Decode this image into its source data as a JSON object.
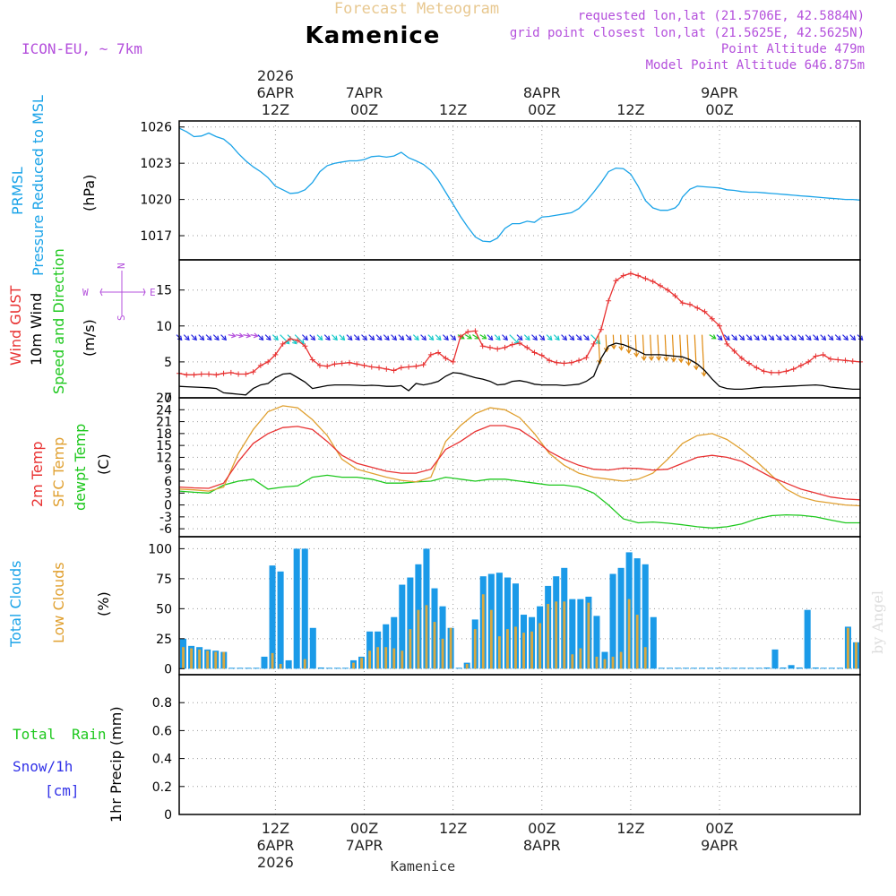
{
  "header": {
    "title_top": "Forecast Meteogram",
    "location": "Kamenice",
    "model": "ICON-EU, ~ 7km",
    "requested": "requested lon,lat (21.5706E, 42.5884N)",
    "gridpoint": "grid point closest lon,lat (21.5625E, 42.5625N)",
    "point_alt": "Point Altitude 479m",
    "model_alt": "Model Point Altitude 646.875m",
    "footer_location": "Kamenice",
    "watermark": "by Angel"
  },
  "colors": {
    "pressure": "#1aa3e8",
    "gust": "#e83232",
    "wind": "#000000",
    "temp2m": "#e83232",
    "sfc": "#e0a030",
    "dew": "#1ec81e",
    "total_cloud": "#1a9ae8",
    "low_cloud": "#d8a840",
    "rain": "#1ec81e",
    "snow": "#3232e8",
    "purple": "#b450dc",
    "arrow_n": "#2020e0",
    "arrow_c": "#10c8c8",
    "arrow_o": "#e08a10"
  },
  "panel_labels": {
    "pressure": [
      "PRMSL",
      "Pressure Reduced to MSL",
      "(hPa)"
    ],
    "wind": [
      "Wind GUST",
      "10m Wind",
      "Speed and Direction",
      "(m/s)"
    ],
    "compass": {
      "n": "N",
      "s": "S",
      "w": "W",
      "e": "E"
    },
    "temp": [
      "2m Temp",
      "SFC Temp",
      "dewpt Temp",
      "(C)"
    ],
    "cloud": [
      "Total Clouds",
      "Low Clouds",
      "(%)"
    ],
    "precip": [
      "Total",
      "Rain",
      "Snow/1h",
      "[cm]",
      "1hr Precip (mm)"
    ]
  },
  "chart_data": {
    "type": "line",
    "hours_range": [
      0,
      92
    ],
    "top_axis": [
      {
        "h": 13,
        "lines": [
          "2026",
          "6APR",
          "12Z"
        ]
      },
      {
        "h": 25,
        "lines": [
          "7APR",
          "00Z"
        ]
      },
      {
        "h": 37,
        "lines": [
          "12Z"
        ]
      },
      {
        "h": 49,
        "lines": [
          "8APR",
          "00Z"
        ]
      },
      {
        "h": 61,
        "lines": [
          "12Z"
        ]
      },
      {
        "h": 73,
        "lines": [
          "9APR",
          "00Z"
        ]
      }
    ],
    "bottom_axis": [
      {
        "h": 13,
        "lines": [
          "12Z",
          "6APR",
          "2026"
        ]
      },
      {
        "h": 25,
        "lines": [
          "00Z",
          "7APR"
        ]
      },
      {
        "h": 37,
        "lines": [
          "12Z"
        ]
      },
      {
        "h": 49,
        "lines": [
          "00Z",
          "8APR"
        ]
      },
      {
        "h": 61,
        "lines": [
          "12Z"
        ]
      },
      {
        "h": 73,
        "lines": [
          "00Z",
          "9APR"
        ]
      }
    ],
    "pressure": {
      "ylim": [
        1015,
        1026.5
      ],
      "ticks": [
        1017,
        1020,
        1023,
        1026
      ],
      "x": [
        0,
        1,
        2,
        3,
        4,
        5,
        6,
        7,
        8,
        9,
        10,
        11,
        12,
        13,
        14,
        15,
        16,
        17,
        18,
        19,
        20,
        21,
        22,
        23,
        24,
        25,
        26,
        27,
        28,
        29,
        30,
        31,
        32,
        33,
        34,
        35,
        36,
        37,
        38,
        39,
        40,
        41,
        42,
        43,
        44,
        45,
        46,
        47,
        48,
        49,
        50,
        51,
        52,
        53,
        54,
        55,
        56,
        57,
        58,
        59,
        60,
        61,
        62,
        63,
        64,
        65,
        66,
        67,
        67.5,
        68,
        69,
        70,
        71,
        72,
        73,
        74,
        75,
        76
      ],
      "values": [
        1025.9,
        1025.6,
        1025.2,
        1025.25,
        1025.5,
        1025.2,
        1025.0,
        1024.5,
        1023.8,
        1023.2,
        1022.7,
        1022.3,
        1021.8,
        1021.1,
        1020.8,
        1020.5,
        1020.55,
        1020.8,
        1021.4,
        1022.3,
        1022.8,
        1023.0,
        1023.1,
        1023.2,
        1023.2,
        1023.3,
        1023.55,
        1023.6,
        1023.5,
        1023.6,
        1023.9,
        1023.45,
        1023.2,
        1022.9,
        1022.4,
        1021.6,
        1020.6,
        1019.6,
        1018.6,
        1017.7,
        1016.9,
        1016.55,
        1016.5,
        1016.8,
        1017.6,
        1018.0,
        1018.0,
        1018.2,
        1018.1,
        1018.55,
        1018.6,
        1018.7,
        1018.8,
        1018.9,
        1019.25,
        1019.85,
        1020.6,
        1021.4,
        1022.3,
        1022.6,
        1022.55,
        1022.1,
        1021.1,
        1019.9,
        1019.3,
        1019.1,
        1019.1,
        1019.3,
        1019.6,
        1020.2,
        1020.85,
        1021.1,
        1021.05,
        1021.0,
        1020.95,
        1020.8,
        1020.75,
        1020.65
      ],
      "x_tail": [
        77,
        78,
        79,
        80,
        81,
        82,
        83,
        84,
        85,
        86,
        87,
        88,
        89,
        90,
        91,
        92
      ],
      "values_tail": [
        1020.6,
        1020.6,
        1020.55,
        1020.5,
        1020.45,
        1020.4,
        1020.35,
        1020.3,
        1020.25,
        1020.2,
        1020.15,
        1020.1,
        1020.05,
        1020.0,
        1020.0,
        1019.95
      ]
    },
    "wind": {
      "ylim": [
        0,
        19.2
      ],
      "ticks": [
        0,
        5,
        10,
        15
      ],
      "gust_x": [
        0,
        1,
        2,
        3,
        4,
        5,
        6,
        7,
        8,
        9,
        10,
        11,
        12,
        13,
        14,
        15,
        16,
        17,
        18,
        19,
        20,
        21,
        22,
        23,
        24,
        25,
        26,
        27,
        28,
        29,
        30,
        31,
        32,
        33,
        34,
        35,
        36,
        37,
        38,
        39,
        40,
        41,
        42,
        43,
        44,
        45,
        46,
        47,
        48,
        49,
        50,
        51,
        52,
        53,
        54,
        55,
        56,
        57,
        58,
        59,
        60,
        61,
        62,
        63,
        64,
        65,
        66,
        67,
        68,
        69,
        70,
        71,
        72,
        73,
        74,
        75,
        76,
        77,
        78,
        79,
        80,
        81,
        82,
        83,
        84,
        85,
        86,
        87,
        88,
        89,
        90,
        91,
        92
      ],
      "gust": [
        3.4,
        3.2,
        3.2,
        3.3,
        3.3,
        3.2,
        3.4,
        3.5,
        3.3,
        3.3,
        3.6,
        4.5,
        5.0,
        6.0,
        7.5,
        8.2,
        8.0,
        7.2,
        5.3,
        4.5,
        4.4,
        4.7,
        4.8,
        4.9,
        4.7,
        4.5,
        4.3,
        4.2,
        4.0,
        3.8,
        4.2,
        4.3,
        4.4,
        4.6,
        6.0,
        6.3,
        5.5,
        5.0,
        8.5,
        9.2,
        9.3,
        7.2,
        7.0,
        6.8,
        7.0,
        7.4,
        7.6,
        7.0,
        6.3,
        5.9,
        5.2,
        4.9,
        4.8,
        4.9,
        5.2,
        5.6,
        7.5,
        9.5,
        13.5,
        16.3,
        17.0,
        17.3,
        17.0,
        16.6,
        16.2,
        15.6,
        15.0,
        14.2,
        13.2,
        13.0,
        12.5,
        12.0,
        11.0,
        10.0,
        7.5,
        6.5,
        5.5,
        4.8,
        4.2,
        3.7,
        3.5,
        3.5,
        3.7,
        4.0,
        4.5,
        5.0,
        5.8,
        6.0,
        5.4,
        5.3,
        5.2,
        5.1,
        5.0
      ],
      "wind_x": [
        0,
        1,
        2,
        3,
        4,
        5,
        6,
        7,
        8,
        9,
        10,
        11,
        12,
        13,
        14,
        15,
        16,
        17,
        18,
        19,
        20,
        21,
        22,
        23,
        24,
        25,
        26,
        27,
        28,
        29,
        30,
        31,
        32,
        33,
        34,
        35,
        36,
        37,
        38,
        39,
        40,
        41,
        42,
        43,
        44,
        45,
        46,
        47,
        48,
        49,
        50,
        51,
        52,
        53,
        54,
        55,
        56,
        57,
        58,
        59,
        60,
        61,
        62,
        63,
        64,
        65,
        66,
        67,
        68,
        69,
        70,
        71,
        72,
        73,
        74,
        75,
        76,
        77,
        78,
        79,
        80,
        81,
        82,
        83,
        84,
        85,
        86,
        87,
        88,
        89,
        90,
        91,
        92
      ],
      "wind": [
        1.6,
        1.55,
        1.5,
        1.45,
        1.4,
        1.3,
        0.7,
        0.6,
        0.5,
        0.4,
        1.3,
        1.8,
        2.0,
        2.8,
        3.3,
        3.4,
        2.8,
        2.2,
        1.3,
        1.5,
        1.7,
        1.8,
        1.8,
        1.8,
        1.75,
        1.7,
        1.75,
        1.7,
        1.6,
        1.6,
        1.7,
        1.0,
        2.0,
        1.8,
        2.0,
        2.3,
        3.0,
        3.5,
        3.4,
        3.1,
        2.8,
        2.6,
        2.3,
        1.8,
        1.9,
        2.3,
        2.4,
        2.2,
        1.9,
        1.8,
        1.8,
        1.8,
        1.7,
        1.8,
        1.9,
        2.3,
        3.0,
        5.5,
        7.2,
        7.6,
        7.4,
        7.0,
        6.5,
        6.0,
        6.0,
        6.0,
        5.9,
        5.8,
        5.7,
        5.3,
        4.7,
        3.8,
        2.6,
        1.6,
        1.3,
        1.2,
        1.2,
        1.3,
        1.4,
        1.5,
        1.5,
        1.55,
        1.6,
        1.65,
        1.7,
        1.75,
        1.8,
        1.7,
        1.5,
        1.4,
        1.3,
        1.2,
        1.2
      ],
      "barb_dirs": [
        "n",
        "n",
        "n",
        "n",
        "n",
        "n",
        "n",
        "p",
        "p",
        "p",
        "p",
        "n",
        "n",
        "c",
        "c",
        "c",
        "c",
        "n",
        "n",
        "c",
        "n",
        "c",
        "c",
        "n",
        "n",
        "n",
        "n",
        "n",
        "n",
        "n",
        "n",
        "n",
        "c",
        "n",
        "c",
        "c",
        "n",
        "n",
        "g",
        "g",
        "g",
        "g",
        "n",
        "c",
        "n",
        "c",
        "n",
        "c",
        "n",
        "n",
        "c",
        "c",
        "n",
        "n",
        "n",
        "n",
        "c",
        "o",
        "o",
        "o",
        "o",
        "o",
        "o",
        "o",
        "o",
        "o",
        "o",
        "o",
        "o",
        "o",
        "o",
        "o",
        "g",
        "n",
        "n",
        "n",
        "n",
        "n",
        "n",
        "n",
        "n",
        "n",
        "n",
        "n",
        "n",
        "n",
        "n",
        "n",
        "n",
        "n",
        "n",
        "n",
        "n"
      ]
    },
    "temp": {
      "ylim": [
        -8,
        27
      ],
      "ticks": [
        -6,
        -3,
        0,
        3,
        6,
        9,
        12,
        15,
        18,
        21,
        24,
        27
      ],
      "x": [
        0,
        2,
        4,
        6,
        8,
        10,
        12,
        14,
        16,
        18,
        20,
        22,
        24,
        26,
        28,
        30,
        32,
        34,
        36,
        38,
        40,
        42,
        44,
        46,
        48,
        50,
        52,
        54,
        56,
        58,
        60,
        62,
        64,
        66,
        68,
        70,
        72,
        74,
        76,
        78,
        80,
        82,
        84,
        86,
        88,
        90,
        92
      ],
      "t2m": [
        4.5,
        4.3,
        4.2,
        5.5,
        11.0,
        15.5,
        18.0,
        19.5,
        19.8,
        19.0,
        16.0,
        12.5,
        10.5,
        9.5,
        8.5,
        8.0,
        8.0,
        9.0,
        14.0,
        16.0,
        18.5,
        20.0,
        20.0,
        19.0,
        16.5,
        13.5,
        11.5,
        10.0,
        9.0,
        8.8,
        9.3,
        9.2,
        8.8,
        9.0,
        10.5,
        12.0,
        12.5,
        12.0,
        11.0,
        9.0,
        7.0,
        5.5,
        4.0,
        3.0,
        2.0,
        1.5,
        1.3
      ],
      "sfc": [
        4.0,
        3.8,
        3.5,
        4.5,
        13.0,
        19.0,
        23.5,
        25.0,
        24.5,
        21.5,
        17.5,
        11.5,
        9.0,
        8.0,
        7.0,
        6.2,
        5.8,
        7.0,
        16.0,
        20.0,
        23.0,
        24.5,
        24.0,
        22.0,
        18.0,
        13.0,
        10.0,
        8.0,
        7.0,
        6.5,
        6.0,
        6.5,
        8.0,
        11.5,
        15.5,
        17.5,
        18.0,
        16.5,
        14.0,
        11.0,
        7.5,
        4.0,
        2.0,
        1.0,
        0.5,
        0.0,
        -0.2
      ],
      "dew": [
        3.5,
        3.2,
        3.0,
        5.0,
        6.0,
        6.5,
        4.0,
        4.5,
        4.8,
        7.0,
        7.5,
        7.0,
        7.0,
        6.5,
        5.5,
        5.5,
        5.8,
        6.0,
        7.0,
        6.5,
        6.0,
        6.5,
        6.5,
        6.0,
        5.5,
        5.0,
        5.0,
        4.5,
        3.0,
        0.0,
        -3.5,
        -4.5,
        -4.3,
        -4.6,
        -5.0,
        -5.5,
        -5.8,
        -5.5,
        -4.8,
        -3.5,
        -2.7,
        -2.5,
        -2.6,
        -3.0,
        -3.8,
        -4.5,
        -4.5
      ]
    },
    "cloud": {
      "ylim": [
        -5,
        110
      ],
      "ticks": [
        0,
        25,
        50,
        75,
        100
      ],
      "total": [
        25,
        19,
        18,
        16,
        15,
        14,
        0,
        0,
        0,
        0,
        10,
        86,
        81,
        7,
        100,
        100,
        34,
        1,
        0,
        0,
        0,
        7,
        10,
        31,
        31,
        37,
        43,
        70,
        76,
        87,
        100,
        67,
        52,
        34,
        0,
        5,
        41,
        77,
        79,
        80,
        76,
        71,
        45,
        43,
        52,
        69,
        77,
        84,
        58,
        58,
        60,
        44,
        14,
        79,
        84,
        97,
        92,
        87,
        43,
        0,
        0,
        0,
        0,
        0,
        0,
        0,
        0,
        0,
        0,
        0,
        0,
        0,
        1,
        16,
        1,
        3,
        1,
        49,
        1,
        0,
        0,
        0,
        35,
        22
      ],
      "low": [
        18,
        17,
        16,
        15,
        14,
        14,
        0,
        0,
        0,
        0,
        0,
        13,
        4,
        0,
        0,
        8,
        0,
        0,
        0,
        0,
        0,
        5,
        9,
        15,
        18,
        18,
        17,
        15,
        33,
        49,
        53,
        39,
        25,
        34,
        0,
        4,
        33,
        62,
        49,
        27,
        33,
        35,
        30,
        31,
        38,
        54,
        56,
        56,
        12,
        17,
        55,
        10,
        8,
        10,
        14,
        58,
        45,
        18,
        0,
        0,
        0,
        0,
        0,
        0,
        0,
        0,
        0,
        0,
        0,
        0,
        0,
        0,
        0,
        0,
        0,
        0,
        0,
        0,
        0,
        0,
        0,
        0,
        34,
        22
      ]
    },
    "precip": {
      "ylim": [
        0,
        1.0
      ],
      "ticks": [
        0,
        0.2,
        0.4,
        0.6,
        0.8
      ],
      "tick_labels": [
        "0",
        "0.2",
        "0.4",
        "0.6",
        "0.8"
      ],
      "total_rain": [],
      "snow": []
    }
  }
}
